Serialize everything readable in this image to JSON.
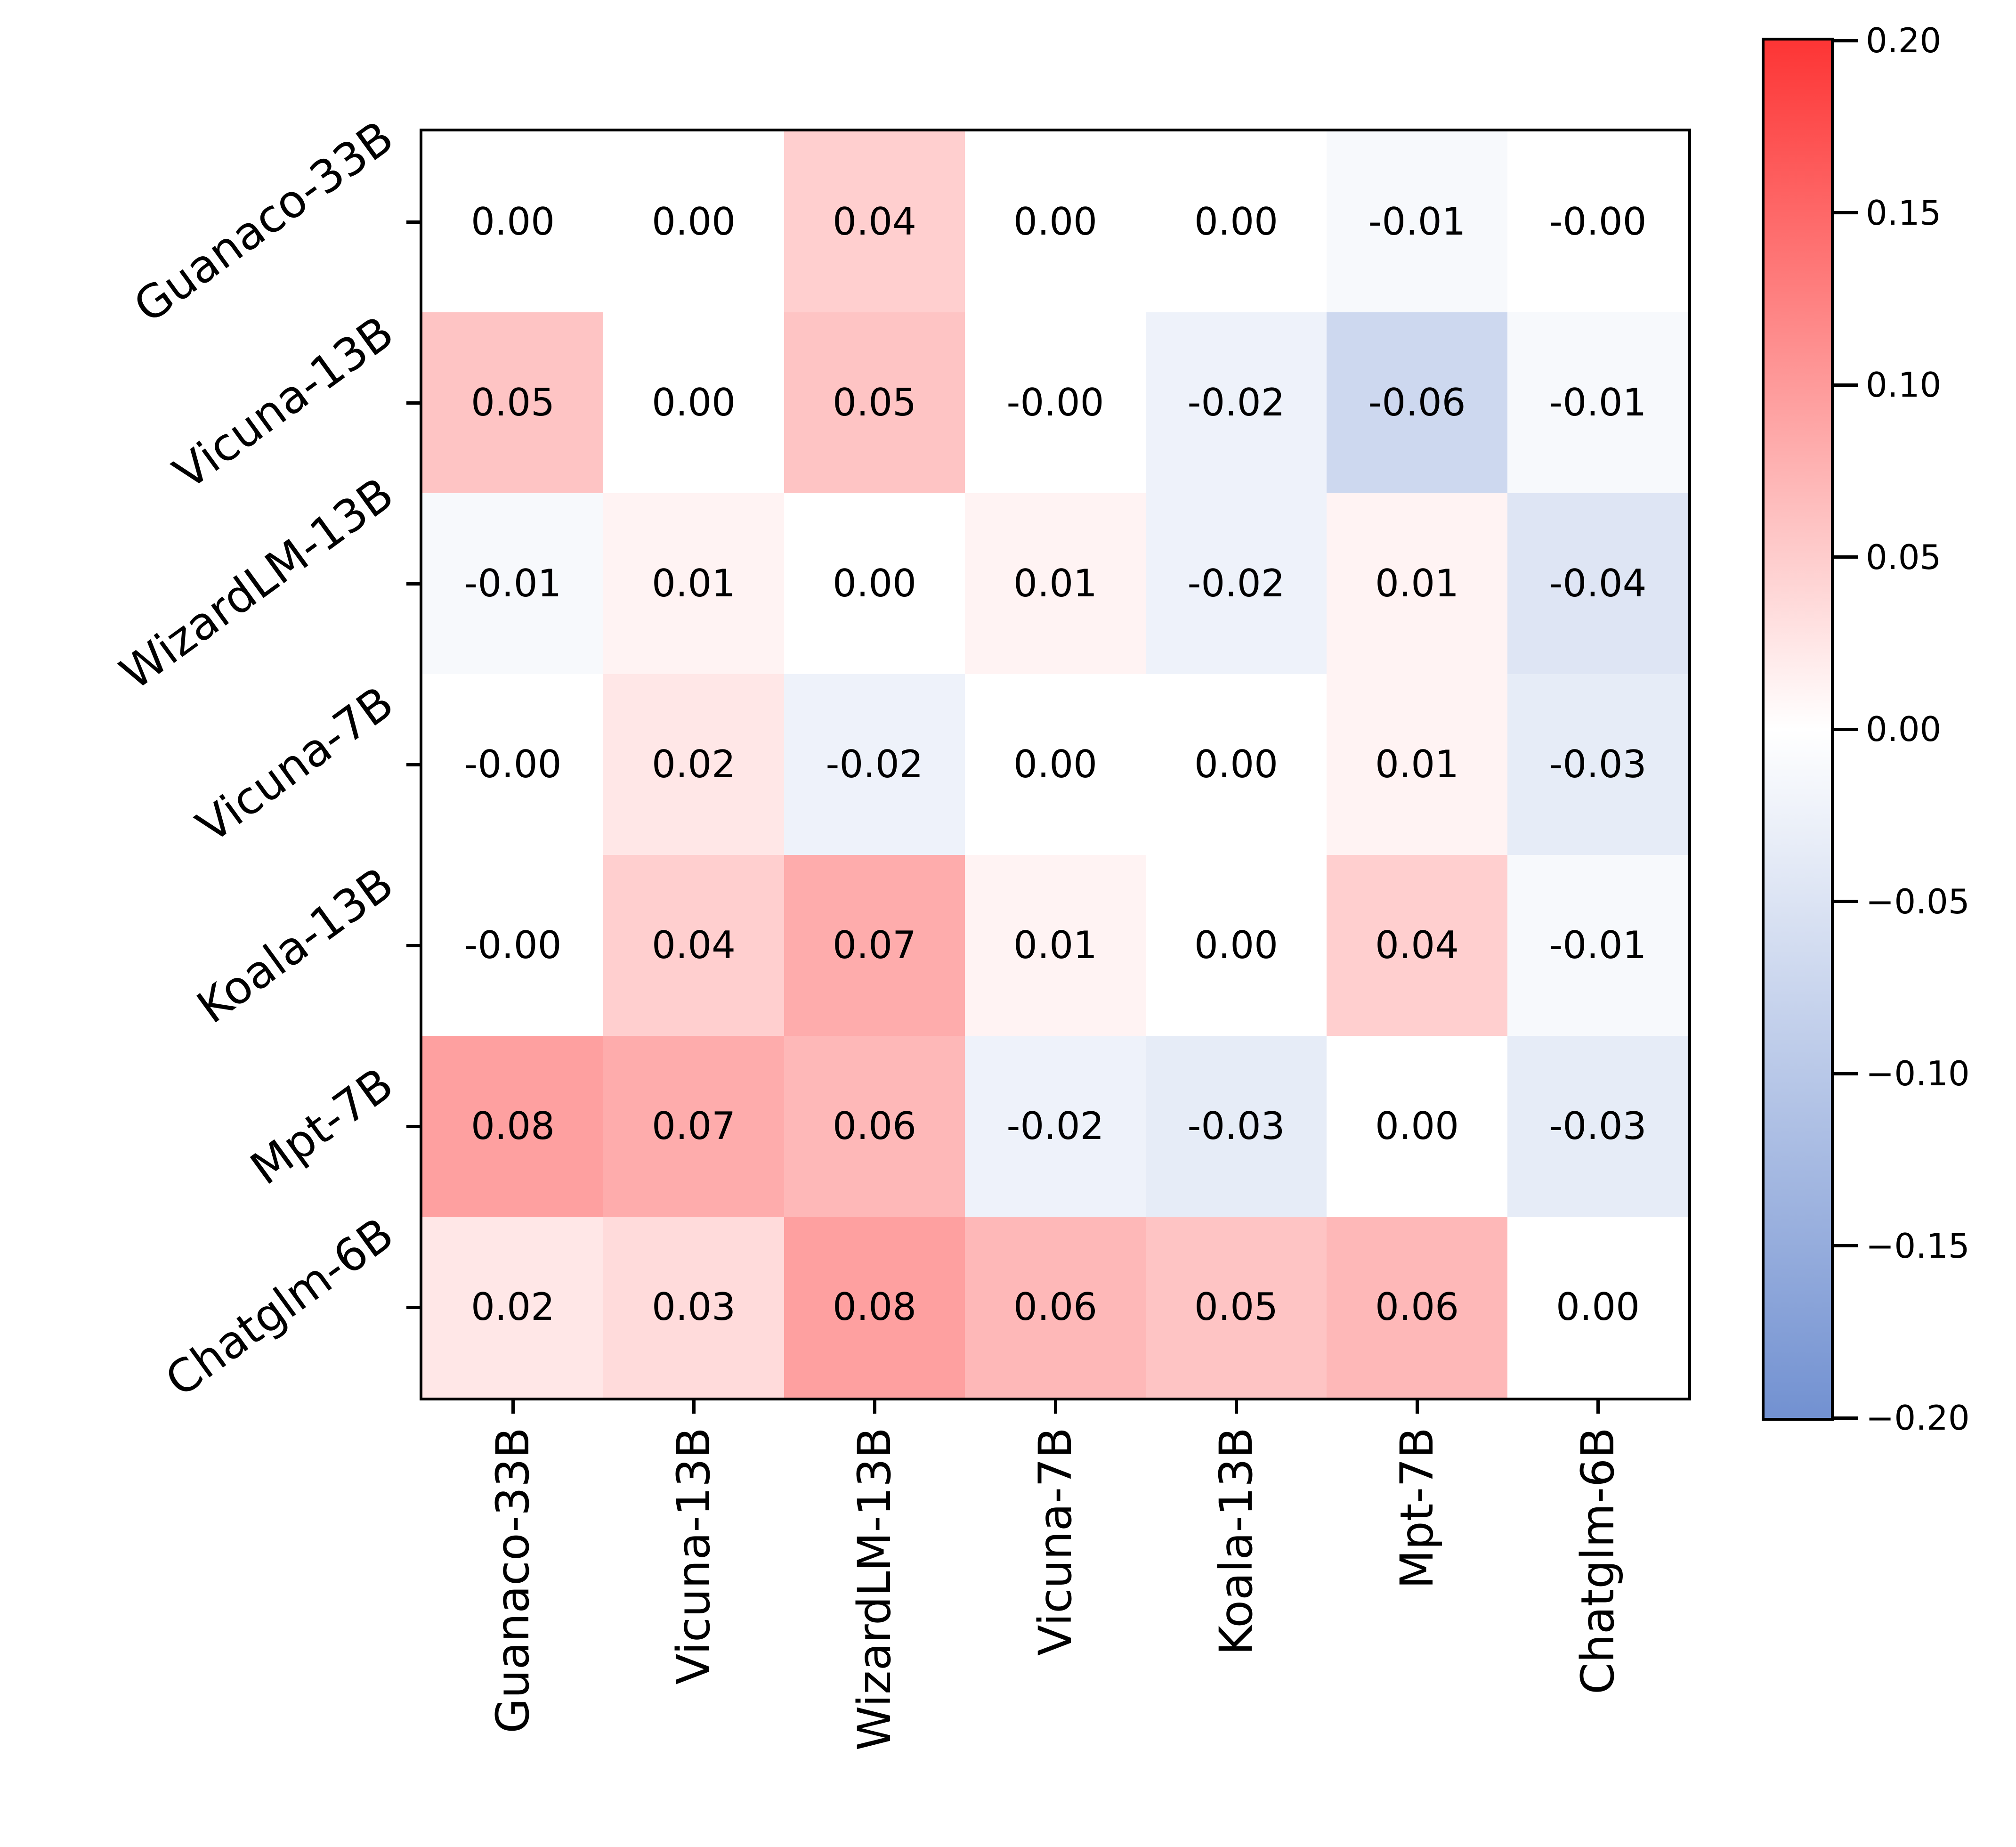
{
  "chart_data": {
    "type": "heatmap",
    "title": "",
    "xlabel": "",
    "ylabel": "",
    "row_labels": [
      "Guanaco-33B",
      "Vicuna-13B",
      "WizardLM-13B",
      "Vicuna-7B",
      "Koala-13B",
      "Mpt-7B",
      "Chatglm-6B"
    ],
    "col_labels": [
      "Guanaco-33B",
      "Vicuna-13B",
      "WizardLM-13B",
      "Vicuna-7B",
      "Koala-13B",
      "Mpt-7B",
      "Chatglm-6B"
    ],
    "values": [
      [
        0.0,
        0.0,
        0.04,
        0.0,
        0.0,
        -0.01,
        -0.0
      ],
      [
        0.05,
        0.0,
        0.05,
        -0.0,
        -0.02,
        -0.06,
        -0.01
      ],
      [
        -0.01,
        0.01,
        0.0,
        0.01,
        -0.02,
        0.01,
        -0.04
      ],
      [
        -0.0,
        0.02,
        -0.02,
        0.0,
        0.0,
        0.01,
        -0.03
      ],
      [
        -0.0,
        0.04,
        0.07,
        0.01,
        0.0,
        0.04,
        -0.01
      ],
      [
        0.08,
        0.07,
        0.06,
        -0.02,
        -0.03,
        0.0,
        -0.03
      ],
      [
        0.02,
        0.03,
        0.08,
        0.06,
        0.05,
        0.06,
        0.0
      ]
    ],
    "cell_text": [
      [
        "0.00",
        "0.00",
        "0.04",
        "0.00",
        "0.00",
        "-0.01",
        "-0.00"
      ],
      [
        "0.05",
        "0.00",
        "0.05",
        "-0.00",
        "-0.02",
        "-0.06",
        "-0.01"
      ],
      [
        "-0.01",
        "0.01",
        "0.00",
        "0.01",
        "-0.02",
        "0.01",
        "-0.04"
      ],
      [
        "-0.00",
        "0.02",
        "-0.02",
        "0.00",
        "0.00",
        "0.01",
        "-0.03"
      ],
      [
        "-0.00",
        "0.04",
        "0.07",
        "0.01",
        "0.00",
        "0.04",
        "-0.01"
      ],
      [
        "0.08",
        "0.07",
        "0.06",
        "-0.02",
        "-0.03",
        "0.00",
        "-0.03"
      ],
      [
        "0.02",
        "0.03",
        "0.08",
        "0.06",
        "0.05",
        "0.06",
        "0.00"
      ]
    ],
    "annotation_color": "#000000",
    "grid_on": false,
    "colorbar": {
      "position": "right",
      "vmin": -0.2,
      "vmax": 0.2,
      "tick_values": [
        0.2,
        0.15,
        0.1,
        0.05,
        0.0,
        -0.05,
        -0.1,
        -0.15,
        -0.2
      ],
      "tick_labels": [
        "0.20",
        "0.15",
        "0.10",
        "0.05",
        "0.00",
        "−0.05",
        "−0.10",
        "−0.15",
        "−0.20"
      ],
      "top_color": "#fd3535",
      "mid_color": "#ffffff",
      "bottom_color": "#7291d1",
      "cell_color_saturation_scale": 0.17
    }
  }
}
